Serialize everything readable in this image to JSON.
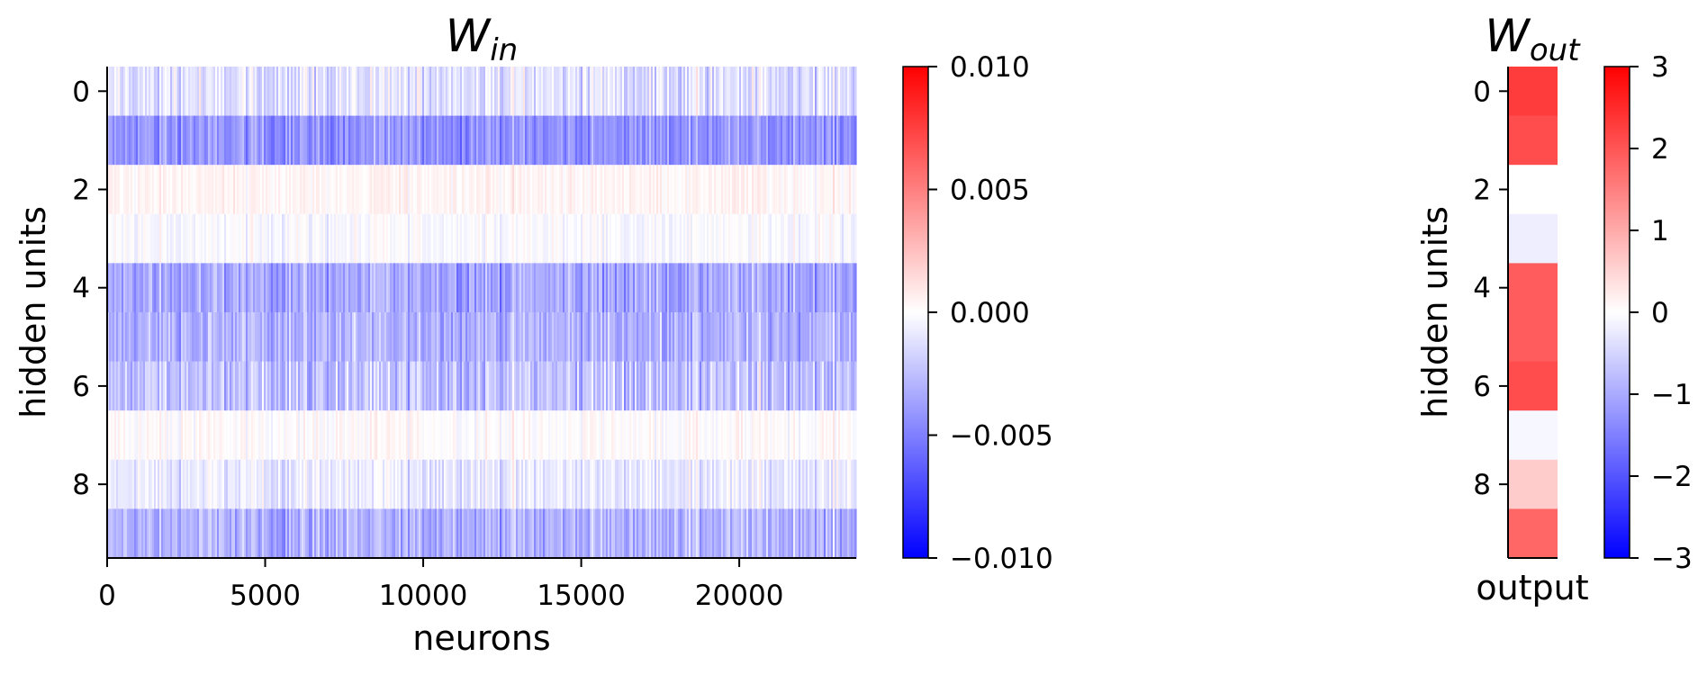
{
  "chart_data": [
    {
      "type": "heatmap",
      "title_main": "W",
      "title_sub": "in",
      "xlabel": "neurons",
      "ylabel": "hidden units",
      "x_range": [
        0,
        23700
      ],
      "x_ticks": [
        0,
        5000,
        10000,
        15000,
        20000
      ],
      "y_ticks": [
        0,
        2,
        4,
        6,
        8
      ],
      "rows": 10,
      "cmap": "bwr",
      "colors": {
        "low": "#0000ff",
        "mid": "#ffffff",
        "high": "#ff0000"
      },
      "row_mean_values": [
        -0.0012,
        -0.0042,
        0.0004,
        -0.0002,
        -0.0034,
        -0.003,
        -0.0024,
        0.0001,
        -0.0008,
        -0.003
      ],
      "colorbar": {
        "vmin": -0.01,
        "vmax": 0.01,
        "ticks": [
          0.01,
          0.005,
          0.0,
          -0.005,
          -0.01
        ],
        "tick_labels": [
          "0.010",
          "0.005",
          "0.000",
          "−0.005",
          "−0.010"
        ]
      }
    },
    {
      "type": "heatmap",
      "title_main": "W",
      "title_sub": "out",
      "xlabel": "output",
      "ylabel": "hidden units",
      "y_ticks": [
        0,
        2,
        4,
        6,
        8
      ],
      "rows": 10,
      "cmap": "bwr",
      "values": [
        2.3,
        2.1,
        0.0,
        -0.2,
        1.9,
        1.9,
        2.1,
        -0.1,
        0.6,
        1.8
      ],
      "colorbar": {
        "vmin": -3,
        "vmax": 3,
        "ticks": [
          3,
          2,
          1,
          0,
          -1,
          -2,
          -3
        ],
        "tick_labels": [
          "3",
          "2",
          "1",
          "0",
          "−1",
          "−2",
          "−3"
        ]
      }
    }
  ]
}
